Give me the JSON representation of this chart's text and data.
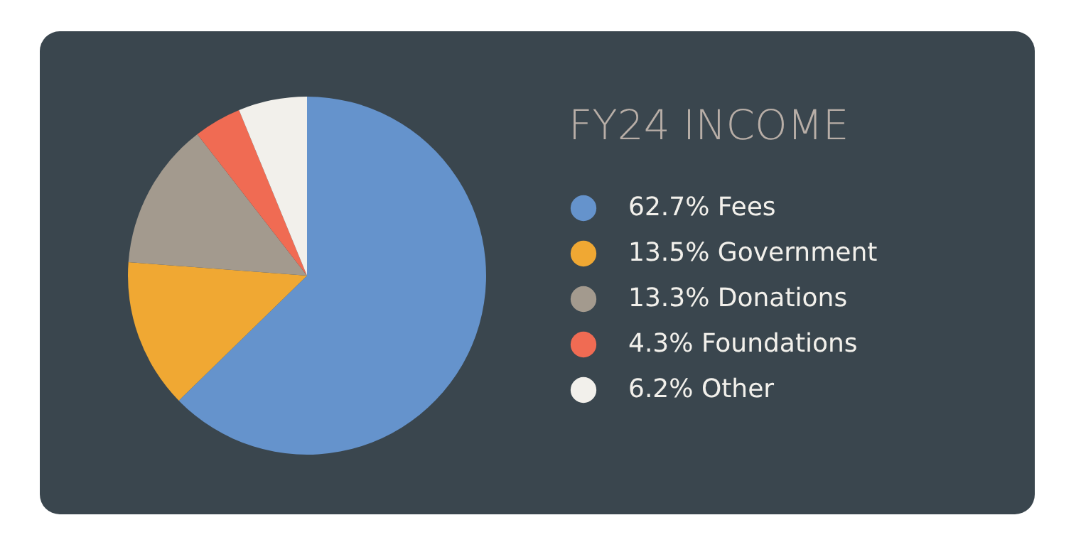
{
  "chart_data": {
    "type": "pie",
    "title": "FY24 INCOME",
    "categories": [
      "Fees",
      "Government",
      "Donations",
      "Foundations",
      "Other"
    ],
    "values": [
      62.7,
      13.5,
      13.3,
      4.3,
      6.2
    ],
    "value_labels": [
      "62.7%",
      "13.5%",
      "13.3%",
      "4.3%",
      "6.2%"
    ],
    "colors": [
      "#6593cc",
      "#f0a833",
      "#a39a8e",
      "#f06b53",
      "#f2f0eb"
    ],
    "legend": "right"
  }
}
